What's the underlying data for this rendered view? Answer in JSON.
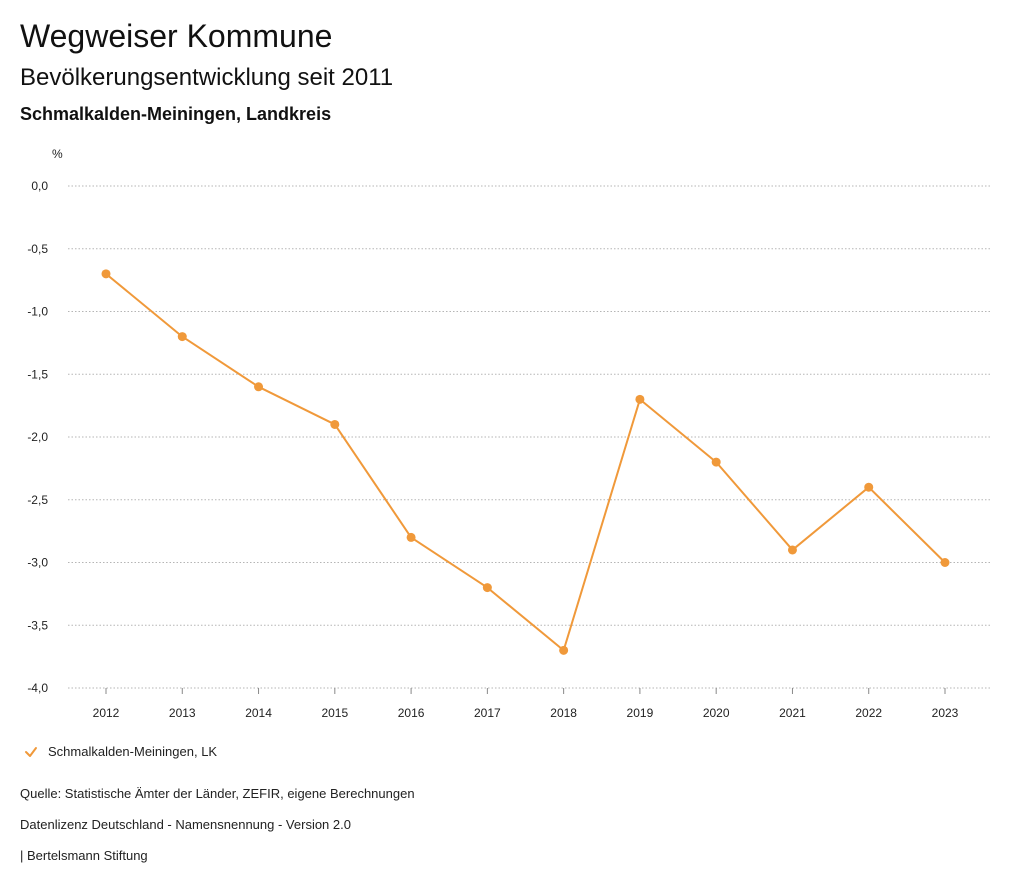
{
  "header": {
    "title": "Wegweiser Kommune",
    "subtitle": "Bevölkerungsentwicklung seit 2011",
    "region": "Schmalkalden-Meiningen, Landkreis"
  },
  "chart_data": {
    "type": "line",
    "title": "Bevölkerungsentwicklung seit 2011",
    "xlabel": "",
    "ylabel": "%",
    "ylim": [
      -4.0,
      0.0
    ],
    "y_ticks": [
      0.0,
      -0.5,
      -1.0,
      -1.5,
      -2.0,
      -2.5,
      -3.0,
      -3.5,
      -4.0
    ],
    "y_tick_labels": [
      "0,0",
      "-0,5",
      "-1,0",
      "-1,5",
      "-2,0",
      "-2,5",
      "-3,0",
      "-3,5",
      "-4,0"
    ],
    "x": [
      "2012",
      "2013",
      "2014",
      "2015",
      "2016",
      "2017",
      "2018",
      "2019",
      "2020",
      "2021",
      "2022",
      "2023"
    ],
    "grid": true,
    "legend_position": "bottom-left",
    "series": [
      {
        "name": "Schmalkalden-Meiningen, LK",
        "color": "#F0993A",
        "values": [
          -0.7,
          -1.2,
          -1.6,
          -1.9,
          -2.8,
          -3.2,
          -3.7,
          -1.7,
          -2.2,
          -2.9,
          -2.4,
          -3.0
        ]
      }
    ]
  },
  "legend": {
    "label": "Schmalkalden-Meiningen, LK",
    "icon": "check-icon"
  },
  "footer": {
    "source": "Quelle: Statistische Ämter der Länder, ZEFIR, eigene Berechnungen",
    "license": "Datenlizenz Deutschland - Namensnennung - Version 2.0",
    "publisher": "| Bertelsmann Stiftung"
  }
}
